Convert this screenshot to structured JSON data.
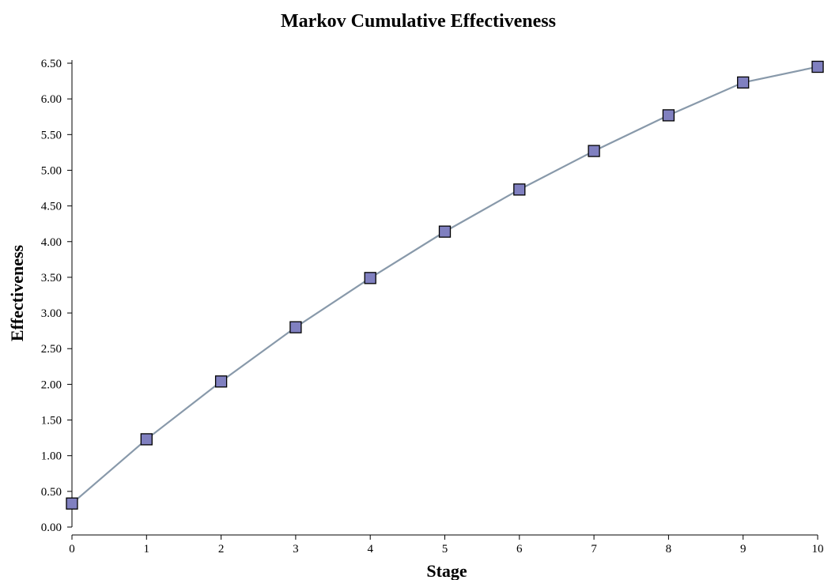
{
  "chart_data": {
    "type": "line",
    "title": "Markov Cumulative Effectiveness",
    "xlabel": "Stage",
    "ylabel": "Effectiveness",
    "x": [
      0,
      1,
      2,
      3,
      4,
      5,
      6,
      7,
      8,
      9,
      10
    ],
    "x_ticks": [
      "0",
      "1",
      "2",
      "3",
      "4",
      "5",
      "6",
      "7",
      "8",
      "9",
      "10"
    ],
    "y_ticks": [
      "0.00",
      "0.50",
      "1.00",
      "1.50",
      "2.00",
      "2.50",
      "3.00",
      "3.50",
      "4.00",
      "4.50",
      "5.00",
      "5.50",
      "6.00",
      "6.50"
    ],
    "xlim": [
      0,
      10
    ],
    "ylim": [
      0,
      6.5
    ],
    "grid": false,
    "series": [
      {
        "values": [
          0.33,
          1.23,
          2.04,
          2.8,
          3.49,
          4.14,
          4.73,
          5.27,
          5.77,
          6.23,
          6.45
        ],
        "line_color": "#8899aa",
        "marker": "square",
        "marker_fill": "#8080c0",
        "marker_stroke": "#000000"
      }
    ]
  }
}
